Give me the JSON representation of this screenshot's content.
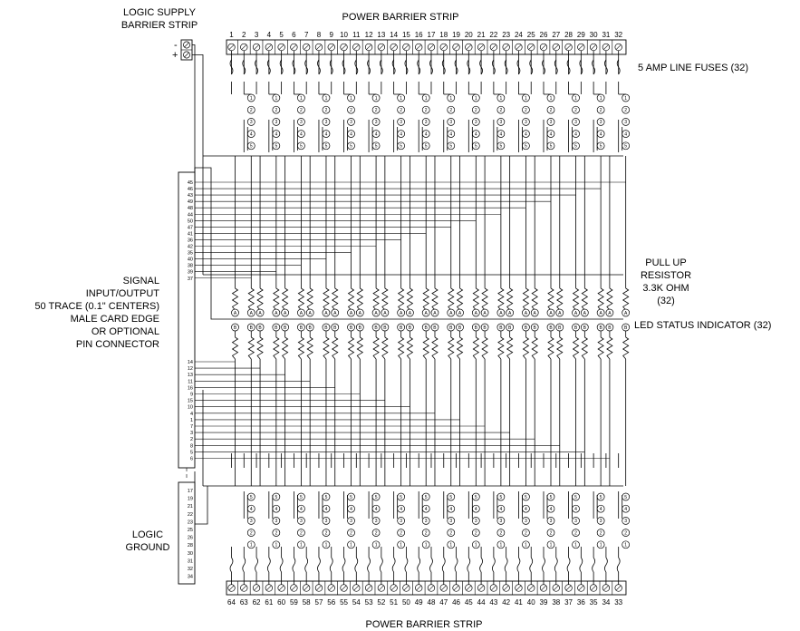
{
  "labels": {
    "logic_supply": [
      "LOGIC SUPPLY",
      "BARRIER STRIP"
    ],
    "power_top": "POWER BARRIER STRIP",
    "power_bottom": "POWER BARRIER STRIP",
    "fuses": "5 AMP LINE FUSES (32)",
    "pullup": [
      "PULL UP",
      "RESISTOR",
      "3.3K OHM",
      "(32)"
    ],
    "led": "LED STATUS INDICATOR (32)",
    "signal": [
      "SIGNAL",
      "INPUT/OUTPUT",
      "50 TRACE (0.1\" CENTERS)",
      "MALE CARD EDGE",
      "OR OPTIONAL",
      "PIN CONNECTOR"
    ],
    "logic_ground": [
      "LOGIC",
      "GROUND"
    ],
    "minus": "-",
    "plus": "+"
  },
  "top_terminals": [
    "1",
    "2",
    "3",
    "4",
    "5",
    "6",
    "7",
    "8",
    "9",
    "10",
    "11",
    "12",
    "13",
    "14",
    "15",
    "16",
    "17",
    "18",
    "19",
    "20",
    "21",
    "22",
    "23",
    "24",
    "25",
    "26",
    "27",
    "28",
    "29",
    "30",
    "31",
    "32"
  ],
  "bottom_terminals": [
    "64",
    "63",
    "62",
    "61",
    "60",
    "59",
    "58",
    "57",
    "56",
    "55",
    "54",
    "53",
    "52",
    "51",
    "50",
    "49",
    "48",
    "47",
    "46",
    "45",
    "44",
    "43",
    "42",
    "41",
    "40",
    "39",
    "38",
    "37",
    "36",
    "35",
    "34",
    "33"
  ],
  "connector_upper_pins": [
    "45",
    "46",
    "43",
    "49",
    "48",
    "44",
    "50",
    "47",
    "41",
    "36",
    "42",
    "35",
    "40",
    "38",
    "39",
    "37"
  ],
  "connector_lower_pins": [
    "14",
    "12",
    "13",
    "11",
    "16",
    "9",
    "15",
    "10",
    "4",
    "1",
    "7",
    "3",
    "2",
    "8",
    "5",
    "6"
  ],
  "connector_ground_pins": [
    "17",
    "19",
    "21",
    "22",
    "23",
    "25",
    "26",
    "28",
    "30",
    "31",
    "32",
    "34"
  ],
  "top_circle_numbers": [
    "1",
    "2",
    "3",
    "4",
    "5"
  ],
  "bottom_circle_numbers": [
    "5",
    "4",
    "3",
    "2",
    "1"
  ],
  "led_top_number": "A",
  "led_bottom_number": "B"
}
